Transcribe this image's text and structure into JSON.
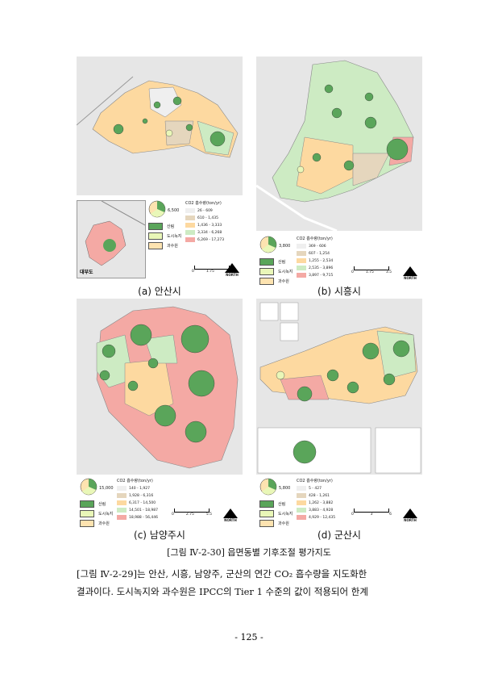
{
  "legend_common": {
    "title": "CO2 흡수량(ton/yr)",
    "categories": [
      {
        "label": "산림",
        "color": "#5aa55a"
      },
      {
        "label": "도시녹지",
        "color": "#e9f7b8"
      },
      {
        "label": "과수원",
        "color": "#fde3b0"
      }
    ],
    "class_colors": [
      "#efefef",
      "#e5d6bd",
      "#fdd9a0",
      "#cdebc3",
      "#f4a9a4"
    ]
  },
  "panels": [
    {
      "caption": "(a) 안산시",
      "pie_value": "6,500",
      "inset_label": "대부도",
      "classes": [
        "26 - 609",
        "610 - 1,435",
        "1,436 - 3,333",
        "3,334 - 6,268",
        "6,269 - 17,273"
      ],
      "scale": [
        "0",
        "1.75",
        "3.5"
      ],
      "scale_unit": "Km",
      "north": "NORTH"
    },
    {
      "caption": "(b) 시흥시",
      "pie_value": "3,800",
      "classes": [
        "369 - 606",
        "607 - 1,254",
        "1,255 - 2,534",
        "2,535 - 3,896",
        "3,897 - 9,715"
      ],
      "scale": [
        "0",
        "1.75",
        "3.5"
      ],
      "scale_unit": "Km",
      "north": "NORTH"
    },
    {
      "caption": "(c) 남양주시",
      "pie_value": "15,000",
      "classes": [
        "140 - 1,927",
        "1,928 - 6,316",
        "6,317 - 14,500",
        "14,501 - 18,987",
        "18,988 - 56,446"
      ],
      "scale": [
        "0",
        "2.75",
        "5.5"
      ],
      "scale_unit": "Km",
      "north": "NORTH"
    },
    {
      "caption": "(d) 군산시",
      "pie_value": "5,800",
      "classes": [
        "5 - 427",
        "428 - 1,261",
        "1,262 - 3,882",
        "3,883 - 4,928",
        "4,929 - 12,435"
      ],
      "scale": [
        "0",
        "3",
        "6"
      ],
      "scale_unit": "Km",
      "north": "NORTH"
    }
  ],
  "figure_caption": "[그림 Ⅳ-2-30] 읍면동별 기후조절 평가지도",
  "paragraph": {
    "line1": "[그림 Ⅳ-2-29]는 안산, 시흥, 남양주, 군산의 연간 CO₂ 흡수량을 지도화한",
    "line2": "결과이다. 도시녹지와 과수원은 IPCC의 Tier 1 수준의 값이 적용되어 한계"
  },
  "page_number": "- 125 -"
}
